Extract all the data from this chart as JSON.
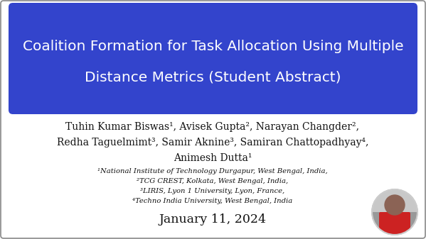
{
  "bg_color": "#ffffff",
  "outer_border_color": "#888888",
  "title_box_color": "#3344cc",
  "title_text_line1": "Coalition Formation for Task Allocation Using Multiple",
  "title_text_line2": "Distance Metrics (Student Abstract)",
  "title_color": "#ffffff",
  "title_fontsize": 14.5,
  "authors_line1": "Tuhin Kumar Biswas¹, Avisek Gupta², Narayan Changder²,",
  "authors_line2": "Redha Taguelmimt³, Samir Aknine³, Samiran Chattopadhyay⁴,",
  "authors_line3": "Animesh Dutta¹",
  "authors_fontsize": 10.0,
  "authors_color": "#111111",
  "affil1": "¹National Institute of Technology Durgapur, West Bengal, India,",
  "affil2": "²TCG CREST, Kolkata, West Bengal, India,",
  "affil3": "³LIRIS, Lyon 1 University, Lyon, France,",
  "affil4": "⁴Techno India University, West Bengal, India",
  "affil_fontsize": 7.2,
  "affil_color": "#111111",
  "date_text": "January 11, 2024",
  "date_fontsize": 12.5,
  "date_color": "#111111",
  "photo_bg": "#aaaaaa",
  "photo_skin": "#8B6355",
  "photo_shirt": "#cc2222"
}
